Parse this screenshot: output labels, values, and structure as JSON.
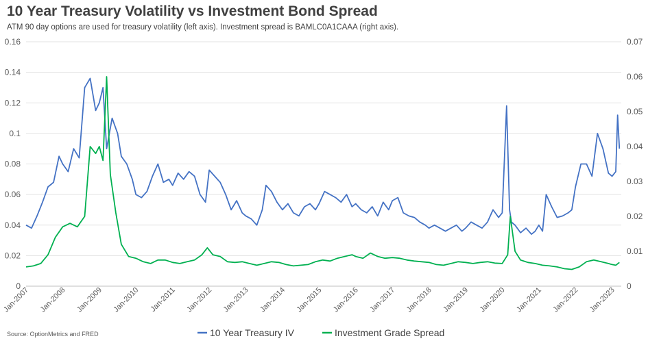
{
  "chart_data": {
    "type": "line",
    "title": "10 Year Treasury Volatility vs Investment Bond Spread",
    "subtitle": "ATM 90 day options are used for treasury volatility (left axis). Investment spread is BAMLC0A1CAAA (right axis).",
    "source": "OptionMetrics and FRED",
    "x_tick_labels": [
      "Jan-2007",
      "Jan-2008",
      "Jan-2009",
      "Jan-2010",
      "Jan-2011",
      "Jan-2012",
      "Jan-2013",
      "Jan-2014",
      "Jan-2015",
      "Jan-2016",
      "Jan-2017",
      "Jan-2018",
      "Jan-2019",
      "Jan-2020",
      "Jan-2021",
      "Jan-2022",
      "Jan-2023"
    ],
    "x_range": [
      2007.0,
      2023.25
    ],
    "y_left": {
      "range": [
        0,
        0.16
      ],
      "ticks": [
        "0",
        "0.02",
        "0.04",
        "0.06",
        "0.08",
        "0.1",
        "0.12",
        "0.14",
        "0.16"
      ]
    },
    "y_right": {
      "range": [
        0,
        0.07
      ],
      "ticks": [
        "0",
        "0.01",
        "0.02",
        "0.03",
        "0.04",
        "0.05",
        "0.06",
        "0.07"
      ]
    },
    "grid": true,
    "legend_position": "bottom",
    "series": [
      {
        "name": "10 Year Treasury IV",
        "axis": "left",
        "color": "#4472C4",
        "x": [
          2007.0,
          2007.15,
          2007.3,
          2007.45,
          2007.6,
          2007.75,
          2007.9,
          2008.0,
          2008.15,
          2008.3,
          2008.45,
          2008.6,
          2008.75,
          2008.9,
          2009.0,
          2009.1,
          2009.2,
          2009.35,
          2009.5,
          2009.6,
          2009.75,
          2009.9,
          2010.0,
          2010.15,
          2010.3,
          2010.45,
          2010.6,
          2010.75,
          2010.9,
          2011.0,
          2011.15,
          2011.3,
          2011.45,
          2011.6,
          2011.75,
          2011.9,
          2012.0,
          2012.15,
          2012.3,
          2012.45,
          2012.6,
          2012.75,
          2012.9,
          2013.0,
          2013.15,
          2013.3,
          2013.45,
          2013.55,
          2013.7,
          2013.85,
          2014.0,
          2014.15,
          2014.3,
          2014.45,
          2014.6,
          2014.75,
          2014.9,
          2015.0,
          2015.15,
          2015.3,
          2015.45,
          2015.6,
          2015.75,
          2015.9,
          2016.0,
          2016.15,
          2016.3,
          2016.45,
          2016.6,
          2016.75,
          2016.9,
          2017.0,
          2017.15,
          2017.3,
          2017.45,
          2017.6,
          2017.75,
          2017.9,
          2018.0,
          2018.15,
          2018.3,
          2018.45,
          2018.6,
          2018.75,
          2018.9,
          2019.0,
          2019.15,
          2019.3,
          2019.45,
          2019.6,
          2019.75,
          2019.9,
          2020.0,
          2020.12,
          2020.2,
          2020.25,
          2020.35,
          2020.5,
          2020.65,
          2020.8,
          2020.9,
          2021.0,
          2021.1,
          2021.2,
          2021.35,
          2021.5,
          2021.65,
          2021.8,
          2021.9,
          2022.0,
          2022.15,
          2022.3,
          2022.45,
          2022.6,
          2022.75,
          2022.9,
          2023.0,
          2023.1,
          2023.15,
          2023.2
        ],
        "y": [
          0.04,
          0.038,
          0.046,
          0.055,
          0.065,
          0.068,
          0.085,
          0.08,
          0.075,
          0.09,
          0.084,
          0.13,
          0.136,
          0.115,
          0.12,
          0.13,
          0.09,
          0.11,
          0.1,
          0.085,
          0.08,
          0.07,
          0.06,
          0.058,
          0.062,
          0.072,
          0.08,
          0.068,
          0.07,
          0.066,
          0.074,
          0.07,
          0.075,
          0.072,
          0.06,
          0.055,
          0.076,
          0.072,
          0.068,
          0.06,
          0.05,
          0.056,
          0.048,
          0.046,
          0.044,
          0.04,
          0.05,
          0.066,
          0.062,
          0.055,
          0.05,
          0.054,
          0.048,
          0.046,
          0.052,
          0.054,
          0.05,
          0.054,
          0.062,
          0.06,
          0.058,
          0.055,
          0.06,
          0.052,
          0.054,
          0.05,
          0.048,
          0.052,
          0.046,
          0.055,
          0.05,
          0.056,
          0.058,
          0.048,
          0.046,
          0.045,
          0.042,
          0.04,
          0.038,
          0.04,
          0.038,
          0.036,
          0.038,
          0.04,
          0.036,
          0.038,
          0.042,
          0.04,
          0.038,
          0.042,
          0.05,
          0.045,
          0.048,
          0.118,
          0.05,
          0.042,
          0.04,
          0.035,
          0.038,
          0.034,
          0.036,
          0.04,
          0.036,
          0.06,
          0.052,
          0.045,
          0.046,
          0.048,
          0.05,
          0.065,
          0.08,
          0.08,
          0.072,
          0.1,
          0.09,
          0.074,
          0.072,
          0.075,
          0.112,
          0.09
        ]
      },
      {
        "name": "Investment Grade Spread",
        "axis": "right",
        "color": "#00B050",
        "x": [
          2007.0,
          2007.2,
          2007.4,
          2007.6,
          2007.8,
          2008.0,
          2008.2,
          2008.4,
          2008.6,
          2008.75,
          2008.9,
          2009.0,
          2009.1,
          2009.2,
          2009.3,
          2009.45,
          2009.6,
          2009.8,
          2010.0,
          2010.2,
          2010.4,
          2010.6,
          2010.8,
          2011.0,
          2011.2,
          2011.4,
          2011.6,
          2011.8,
          2011.95,
          2012.1,
          2012.3,
          2012.5,
          2012.7,
          2012.9,
          2013.1,
          2013.3,
          2013.5,
          2013.7,
          2013.9,
          2014.1,
          2014.3,
          2014.5,
          2014.7,
          2014.9,
          2015.1,
          2015.3,
          2015.5,
          2015.7,
          2015.9,
          2016.0,
          2016.2,
          2016.4,
          2016.6,
          2016.8,
          2017.0,
          2017.2,
          2017.4,
          2017.6,
          2017.8,
          2018.0,
          2018.2,
          2018.4,
          2018.6,
          2018.8,
          2019.0,
          2019.2,
          2019.4,
          2019.6,
          2019.8,
          2020.0,
          2020.15,
          2020.22,
          2020.35,
          2020.5,
          2020.7,
          2020.9,
          2021.1,
          2021.3,
          2021.5,
          2021.7,
          2021.9,
          2022.1,
          2022.3,
          2022.5,
          2022.7,
          2022.9,
          2023.0,
          2023.1,
          2023.2
        ],
        "y": [
          0.0055,
          0.0058,
          0.0065,
          0.009,
          0.014,
          0.017,
          0.018,
          0.017,
          0.02,
          0.04,
          0.038,
          0.04,
          0.036,
          0.06,
          0.032,
          0.021,
          0.012,
          0.0085,
          0.008,
          0.007,
          0.0065,
          0.0075,
          0.0075,
          0.0068,
          0.0065,
          0.007,
          0.0075,
          0.009,
          0.011,
          0.009,
          0.0085,
          0.007,
          0.0068,
          0.007,
          0.0065,
          0.006,
          0.0065,
          0.007,
          0.0068,
          0.0062,
          0.0058,
          0.006,
          0.0062,
          0.007,
          0.0075,
          0.0072,
          0.008,
          0.0085,
          0.009,
          0.0085,
          0.008,
          0.0095,
          0.0085,
          0.008,
          0.0082,
          0.008,
          0.0075,
          0.0072,
          0.007,
          0.0068,
          0.0062,
          0.006,
          0.0065,
          0.007,
          0.0068,
          0.0065,
          0.0068,
          0.007,
          0.0066,
          0.0065,
          0.009,
          0.02,
          0.01,
          0.0075,
          0.0068,
          0.0065,
          0.006,
          0.0058,
          0.0055,
          0.005,
          0.0048,
          0.0055,
          0.007,
          0.0075,
          0.007,
          0.0065,
          0.0062,
          0.006,
          0.0068
        ]
      }
    ]
  }
}
